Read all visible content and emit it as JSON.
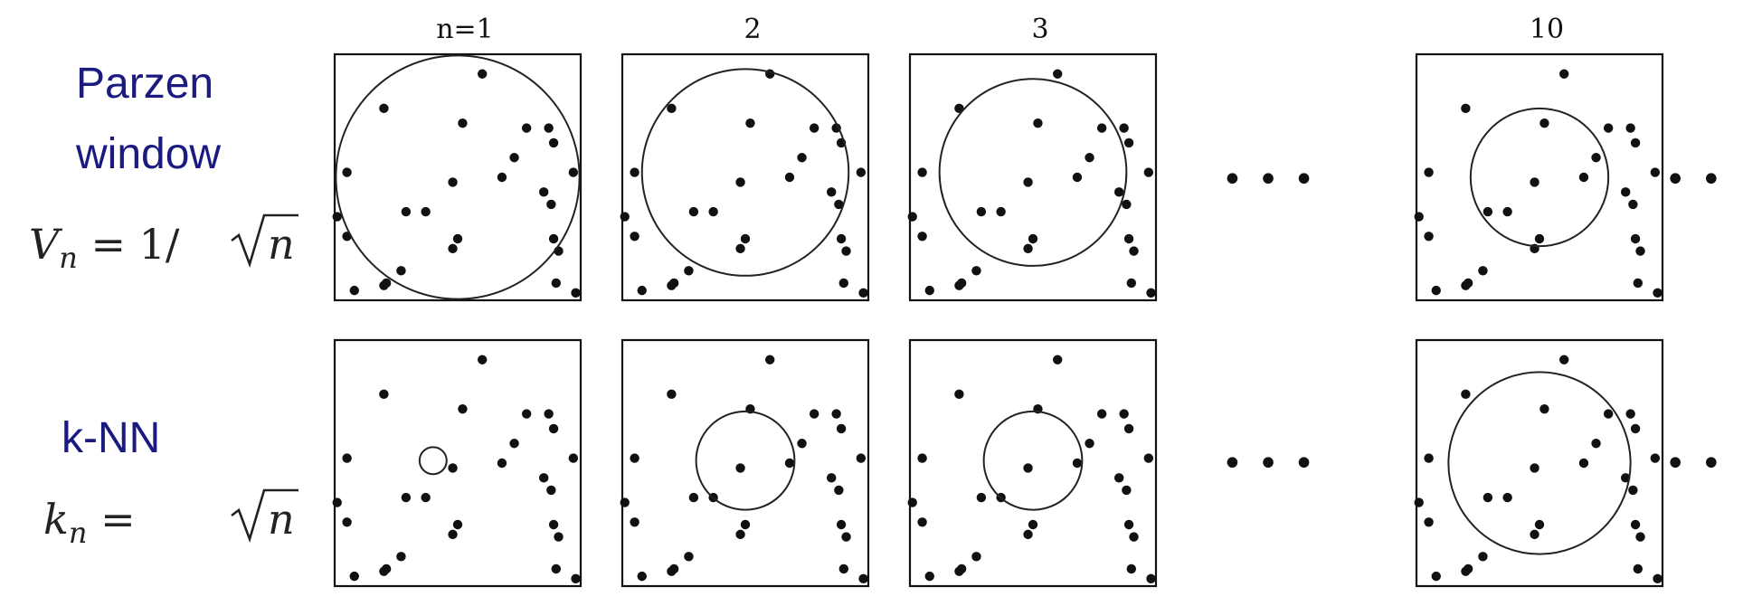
{
  "columns": [
    {
      "label": "n=1",
      "n": 1
    },
    {
      "label": "2",
      "n": 2
    },
    {
      "label": "3",
      "n": 3
    },
    {
      "label": "10",
      "n": 10
    }
  ],
  "rows": [
    {
      "id": "parzen",
      "title_lines": [
        "Parzen",
        "window"
      ],
      "formula": {
        "lhs": "V",
        "sub": "n",
        "mid": " = 1/",
        "radicand": "n"
      },
      "window_radius": [
        0.99,
        0.84,
        0.76,
        0.56
      ]
    },
    {
      "id": "knn",
      "title_lines": [
        "k-NN"
      ],
      "formula": {
        "lhs": "k",
        "sub": "n",
        "mid": " = ",
        "radicand": "n"
      },
      "window_radius": [
        0.11,
        0.4,
        0.4,
        0.74
      ]
    }
  ],
  "points": [
    [
      0.6,
      0.08
    ],
    [
      0.2,
      0.22
    ],
    [
      0.52,
      0.28
    ],
    [
      0.78,
      0.3
    ],
    [
      0.87,
      0.3
    ],
    [
      0.89,
      0.36
    ],
    [
      0.73,
      0.42
    ],
    [
      0.05,
      0.48
    ],
    [
      0.68,
      0.5
    ],
    [
      0.48,
      0.52
    ],
    [
      0.97,
      0.48
    ],
    [
      0.85,
      0.56
    ],
    [
      0.88,
      0.61
    ],
    [
      0.29,
      0.64
    ],
    [
      0.37,
      0.64
    ],
    [
      0.01,
      0.66
    ],
    [
      0.05,
      0.74
    ],
    [
      0.5,
      0.75
    ],
    [
      0.89,
      0.75
    ],
    [
      0.91,
      0.8
    ],
    [
      0.48,
      0.79
    ],
    [
      0.27,
      0.88
    ],
    [
      0.21,
      0.93
    ],
    [
      0.2,
      0.94
    ],
    [
      0.08,
      0.96
    ],
    [
      0.9,
      0.93
    ],
    [
      0.98,
      0.97
    ]
  ],
  "ellipsis": "•••"
}
